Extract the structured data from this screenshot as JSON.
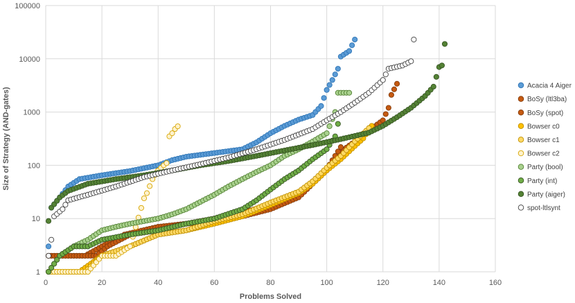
{
  "chart_data": {
    "type": "scatter",
    "title": "",
    "xlabel": "Problems Solved",
    "ylabel": "Size of Strategy (AND-gates)",
    "xlim": [
      0,
      160
    ],
    "ylim": [
      1,
      100000
    ],
    "yscale": "log",
    "x_ticks": [
      0,
      20,
      40,
      60,
      80,
      100,
      120,
      140,
      160
    ],
    "x_tick_labels": [
      "0",
      "20",
      "40",
      "60",
      "80",
      "100",
      "120",
      "140",
      "160"
    ],
    "y_ticks": [
      1,
      10,
      100,
      1000,
      10000,
      100000
    ],
    "y_tick_labels": [
      "1",
      "10",
      "100",
      "1000",
      "10000",
      "100000"
    ],
    "grid": true,
    "legend_position": "right",
    "series": [
      {
        "name": "Acacia 4 Aiger",
        "color": "#5B9BD5",
        "stroke": "#2E75B6",
        "n": 110,
        "points": [
          [
            1,
            3
          ],
          [
            2,
            16
          ],
          [
            5,
            25
          ],
          [
            8,
            40
          ],
          [
            12,
            55
          ],
          [
            20,
            65
          ],
          [
            30,
            78
          ],
          [
            40,
            100
          ],
          [
            45,
            125
          ],
          [
            50,
            145
          ],
          [
            60,
            170
          ],
          [
            70,
            200
          ],
          [
            75,
            270
          ],
          [
            80,
            400
          ],
          [
            85,
            550
          ],
          [
            90,
            720
          ],
          [
            95,
            880
          ],
          [
            98,
            1300
          ],
          [
            100,
            2600
          ],
          [
            102,
            4000
          ],
          [
            104,
            6500
          ],
          [
            105,
            11000
          ],
          [
            108,
            14000
          ],
          [
            110,
            23000
          ]
        ]
      },
      {
        "name": "BoSy (ltl3ba)",
        "color": "#C55A11",
        "stroke": "#843C0C",
        "n": 125,
        "points": [
          [
            14,
            2
          ],
          [
            20,
            3
          ],
          [
            28,
            5
          ],
          [
            40,
            7
          ],
          [
            50,
            8
          ],
          [
            60,
            9
          ],
          [
            70,
            11
          ],
          [
            80,
            15
          ],
          [
            90,
            25
          ],
          [
            95,
            45
          ],
          [
            100,
            80
          ],
          [
            105,
            180
          ],
          [
            110,
            280
          ],
          [
            115,
            450
          ],
          [
            120,
            700
          ],
          [
            122,
            1200
          ],
          [
            123,
            2100
          ],
          [
            125,
            3400
          ]
        ]
      },
      {
        "name": "BoSy (spot)",
        "color": "#C55A11",
        "stroke": "#843C0C",
        "n": 105,
        "points": [
          [
            18,
            2
          ],
          [
            22,
            3
          ],
          [
            30,
            5
          ],
          [
            40,
            6
          ],
          [
            50,
            8
          ],
          [
            60,
            10
          ],
          [
            70,
            13
          ],
          [
            80,
            18
          ],
          [
            90,
            30
          ],
          [
            95,
            50
          ],
          [
            100,
            85
          ],
          [
            105,
            220
          ]
        ]
      },
      {
        "name": "Bowser c0",
        "color": "#FFC000",
        "stroke": "#BF9000",
        "n": 116,
        "points": [
          [
            12,
            1
          ],
          [
            20,
            2
          ],
          [
            30,
            3
          ],
          [
            40,
            5
          ],
          [
            50,
            6
          ],
          [
            60,
            8
          ],
          [
            70,
            11
          ],
          [
            80,
            18
          ],
          [
            90,
            30
          ],
          [
            95,
            45
          ],
          [
            100,
            80
          ],
          [
            105,
            130
          ],
          [
            110,
            230
          ],
          [
            113,
            320
          ],
          [
            116,
            550
          ]
        ]
      },
      {
        "name": "Bowser c1",
        "color": "#FFD966",
        "stroke": "#BF9000",
        "n": 115,
        "points": [
          [
            14,
            1
          ],
          [
            20,
            2
          ],
          [
            30,
            3
          ],
          [
            40,
            5
          ],
          [
            50,
            6
          ],
          [
            60,
            9
          ],
          [
            70,
            12
          ],
          [
            80,
            20
          ],
          [
            90,
            32
          ],
          [
            95,
            50
          ],
          [
            100,
            90
          ],
          [
            105,
            150
          ],
          [
            110,
            280
          ],
          [
            115,
            500
          ]
        ]
      },
      {
        "name": "Bowser c2",
        "color": "#FFF2CC",
        "stroke": "#D6A500",
        "n": 47,
        "points": [
          [
            3,
            1
          ],
          [
            8,
            1
          ],
          [
            15,
            1
          ],
          [
            20,
            2
          ],
          [
            25,
            2
          ],
          [
            30,
            3
          ],
          [
            35,
            24
          ],
          [
            36,
            30
          ],
          [
            38,
            55
          ],
          [
            40,
            80
          ],
          [
            42,
            100
          ],
          [
            43,
            110
          ],
          [
            44,
            350
          ],
          [
            45,
            400
          ],
          [
            46,
            480
          ],
          [
            47,
            540
          ]
        ]
      },
      {
        "name": "Party (bool)",
        "color": "#A9D18E",
        "stroke": "#548235",
        "n": 108,
        "points": [
          [
            1,
            1
          ],
          [
            5,
            2
          ],
          [
            10,
            3
          ],
          [
            15,
            4
          ],
          [
            20,
            6
          ],
          [
            25,
            7
          ],
          [
            30,
            8
          ],
          [
            40,
            10
          ],
          [
            45,
            12
          ],
          [
            50,
            15
          ],
          [
            60,
            28
          ],
          [
            65,
            40
          ],
          [
            70,
            55
          ],
          [
            75,
            75
          ],
          [
            80,
            100
          ],
          [
            85,
            150
          ],
          [
            90,
            200
          ],
          [
            95,
            280
          ],
          [
            100,
            400
          ],
          [
            103,
            1000
          ],
          [
            104,
            2300
          ],
          [
            108,
            2300
          ]
        ]
      },
      {
        "name": "Party (int)",
        "color": "#70AD47",
        "stroke": "#385723",
        "n": 104,
        "points": [
          [
            1,
            1
          ],
          [
            5,
            2
          ],
          [
            10,
            3
          ],
          [
            15,
            3
          ],
          [
            20,
            4
          ],
          [
            30,
            5
          ],
          [
            40,
            6
          ],
          [
            50,
            8
          ],
          [
            60,
            10
          ],
          [
            70,
            15
          ],
          [
            75,
            22
          ],
          [
            80,
            35
          ],
          [
            85,
            55
          ],
          [
            90,
            80
          ],
          [
            95,
            130
          ],
          [
            100,
            200
          ],
          [
            103,
            350
          ],
          [
            104,
            600
          ]
        ]
      },
      {
        "name": "Party (aiger)",
        "color": "#548235",
        "stroke": "#375623",
        "n": 142,
        "points": [
          [
            1,
            9
          ],
          [
            2,
            16
          ],
          [
            5,
            25
          ],
          [
            8,
            33
          ],
          [
            15,
            45
          ],
          [
            25,
            55
          ],
          [
            35,
            65
          ],
          [
            45,
            80
          ],
          [
            55,
            100
          ],
          [
            65,
            120
          ],
          [
            75,
            150
          ],
          [
            85,
            190
          ],
          [
            95,
            240
          ],
          [
            105,
            310
          ],
          [
            115,
            410
          ],
          [
            120,
            550
          ],
          [
            125,
            800
          ],
          [
            130,
            1200
          ],
          [
            135,
            2000
          ],
          [
            138,
            3000
          ],
          [
            140,
            7000
          ],
          [
            141,
            7500
          ],
          [
            142,
            19000
          ]
        ]
      },
      {
        "name": "spot-ltlsynt",
        "color": "#FFFFFF",
        "stroke": "#404040",
        "n": 131,
        "points": [
          [
            1,
            2
          ],
          [
            2,
            4
          ],
          [
            3,
            11
          ],
          [
            6,
            15
          ],
          [
            8,
            22
          ],
          [
            15,
            28
          ],
          [
            25,
            40
          ],
          [
            35,
            60
          ],
          [
            45,
            80
          ],
          [
            55,
            105
          ],
          [
            65,
            140
          ],
          [
            75,
            200
          ],
          [
            85,
            300
          ],
          [
            95,
            480
          ],
          [
            100,
            700
          ],
          [
            105,
            1000
          ],
          [
            110,
            1500
          ],
          [
            115,
            2300
          ],
          [
            120,
            4000
          ],
          [
            122,
            6500
          ],
          [
            127,
            7500
          ],
          [
            130,
            9000
          ],
          [
            131,
            23000
          ]
        ]
      }
    ]
  }
}
